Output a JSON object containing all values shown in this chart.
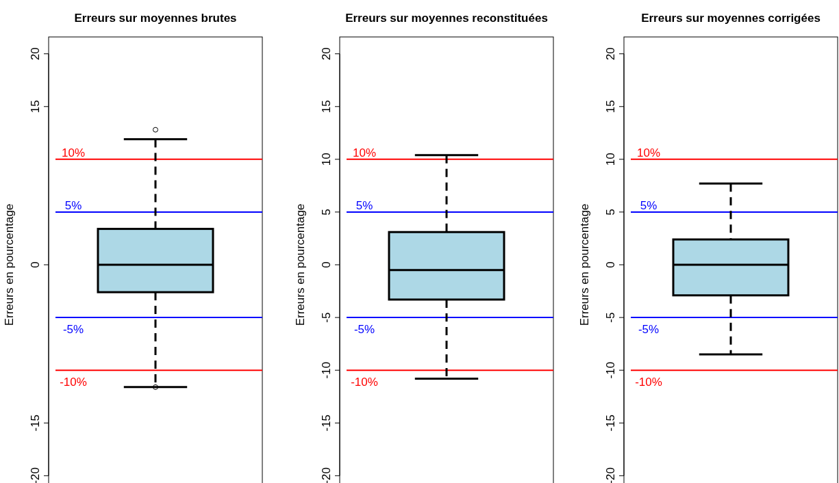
{
  "chart_data": [
    {
      "type": "box",
      "title": "Erreurs sur moyennes brutes",
      "ylabel": "Erreurs en pourcentage",
      "categories": [
        null
      ],
      "color": "#add8e6",
      "tick_labels": "y",
      "ylim": [
        -21.6,
        21.6
      ],
      "yticks": [
        -20,
        -15,
        0,
        15,
        20
      ],
      "boxes": [
        {
          "low": -11.6,
          "q1": -2.6,
          "median": 0,
          "q3": 3.4,
          "high": 11.9,
          "outliers": [
            12.8,
            -11.6
          ]
        }
      ],
      "ref_lines": [
        {
          "axis": "y",
          "value": 10,
          "label": "10%",
          "color": "#ff0000"
        },
        {
          "axis": "y",
          "value": 5,
          "label": "5%",
          "color": "#0000ff"
        },
        {
          "axis": "y",
          "value": -5,
          "label": "-5%",
          "color": "#0000ff"
        },
        {
          "axis": "y",
          "value": -10,
          "label": "-10%",
          "color": "#ff0000"
        }
      ]
    },
    {
      "type": "box",
      "title": "Erreurs sur moyennes reconstituées",
      "ylabel": "Erreurs en pourcentage",
      "categories": [
        null
      ],
      "color": "#add8e6",
      "tick_labels": "y",
      "ylim": [
        -21.6,
        21.6
      ],
      "yticks": [
        -20,
        -15,
        -10,
        -5,
        0,
        5,
        10,
        15,
        20
      ],
      "boxes": [
        {
          "low": -10.8,
          "q1": -3.3,
          "median": -0.5,
          "q3": 3.1,
          "high": 10.4
        }
      ],
      "ref_lines": [
        {
          "axis": "y",
          "value": 10,
          "label": "10%",
          "color": "#ff0000"
        },
        {
          "axis": "y",
          "value": 5,
          "label": "5%",
          "color": "#0000ff"
        },
        {
          "axis": "y",
          "value": -5,
          "label": "-5%",
          "color": "#0000ff"
        },
        {
          "axis": "y",
          "value": -10,
          "label": "-10%",
          "color": "#ff0000"
        }
      ]
    },
    {
      "type": "box",
      "title": "Erreurs sur moyennes corrigées",
      "ylabel": "Erreurs en pourcentage",
      "categories": [
        null
      ],
      "color": "#add8e6",
      "tick_labels": "y",
      "ylim": [
        -21.6,
        21.6
      ],
      "yticks": [
        -20,
        -15,
        -10,
        -5,
        0,
        5,
        10,
        15,
        20
      ],
      "boxes": [
        {
          "low": -8.5,
          "q1": -2.9,
          "median": 0,
          "q3": 2.4,
          "high": 7.7
        }
      ],
      "ref_lines": [
        {
          "axis": "y",
          "value": 10,
          "label": "10%",
          "color": "#ff0000"
        },
        {
          "axis": "y",
          "value": 5,
          "label": "5%",
          "color": "#0000ff"
        },
        {
          "axis": "y",
          "value": -5,
          "label": "-5%",
          "color": "#0000ff"
        },
        {
          "axis": "y",
          "value": -10,
          "label": "-10%",
          "color": "#ff0000"
        }
      ]
    }
  ]
}
